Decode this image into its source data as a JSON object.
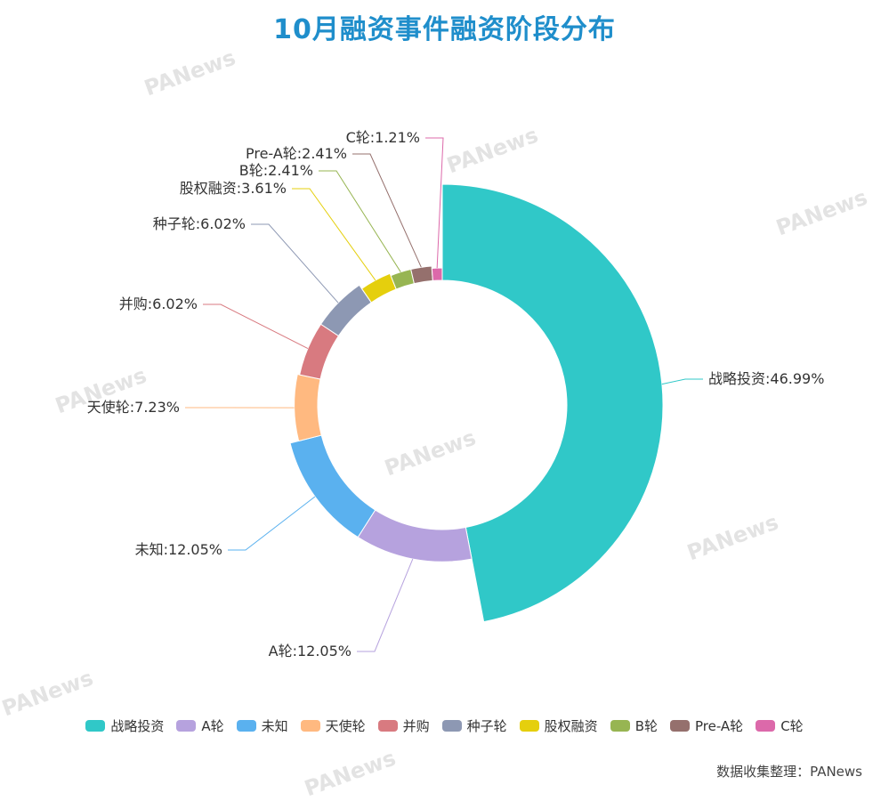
{
  "title": "10月融资事件融资阶段分布",
  "source": "数据收集整理：PANews",
  "watermark_text": "PANews",
  "chart_data": {
    "type": "pie",
    "variant": "rose-donut",
    "title": "10月融资事件融资阶段分布",
    "legend_position": "bottom",
    "slices": [
      {
        "name": "战略投资",
        "value": 46.99,
        "label": "战略投资:46.99%",
        "color": "#30c8c8"
      },
      {
        "name": "A轮",
        "value": 12.05,
        "label": "A轮:12.05%",
        "color": "#b6a2de"
      },
      {
        "name": "未知",
        "value": 12.05,
        "label": "未知:12.05%",
        "color": "#5ab1ef"
      },
      {
        "name": "天使轮",
        "value": 7.23,
        "label": "天使轮:7.23%",
        "color": "#ffb980"
      },
      {
        "name": "并购",
        "value": 6.02,
        "label": "并购:6.02%",
        "color": "#d87a80"
      },
      {
        "name": "种子轮",
        "value": 6.02,
        "label": "种子轮:6.02%",
        "color": "#8d98b3"
      },
      {
        "name": "股权融资",
        "value": 3.61,
        "label": "股权融资:3.61%",
        "color": "#e5cf0d"
      },
      {
        "name": "B轮",
        "value": 2.41,
        "label": "B轮:2.41%",
        "color": "#97b552"
      },
      {
        "name": "Pre-A轮",
        "value": 2.41,
        "label": "Pre-A轮:2.41%",
        "color": "#95706d"
      },
      {
        "name": "C轮",
        "value": 1.21,
        "label": "C轮:1.21%",
        "color": "#dc69aa"
      }
    ]
  }
}
